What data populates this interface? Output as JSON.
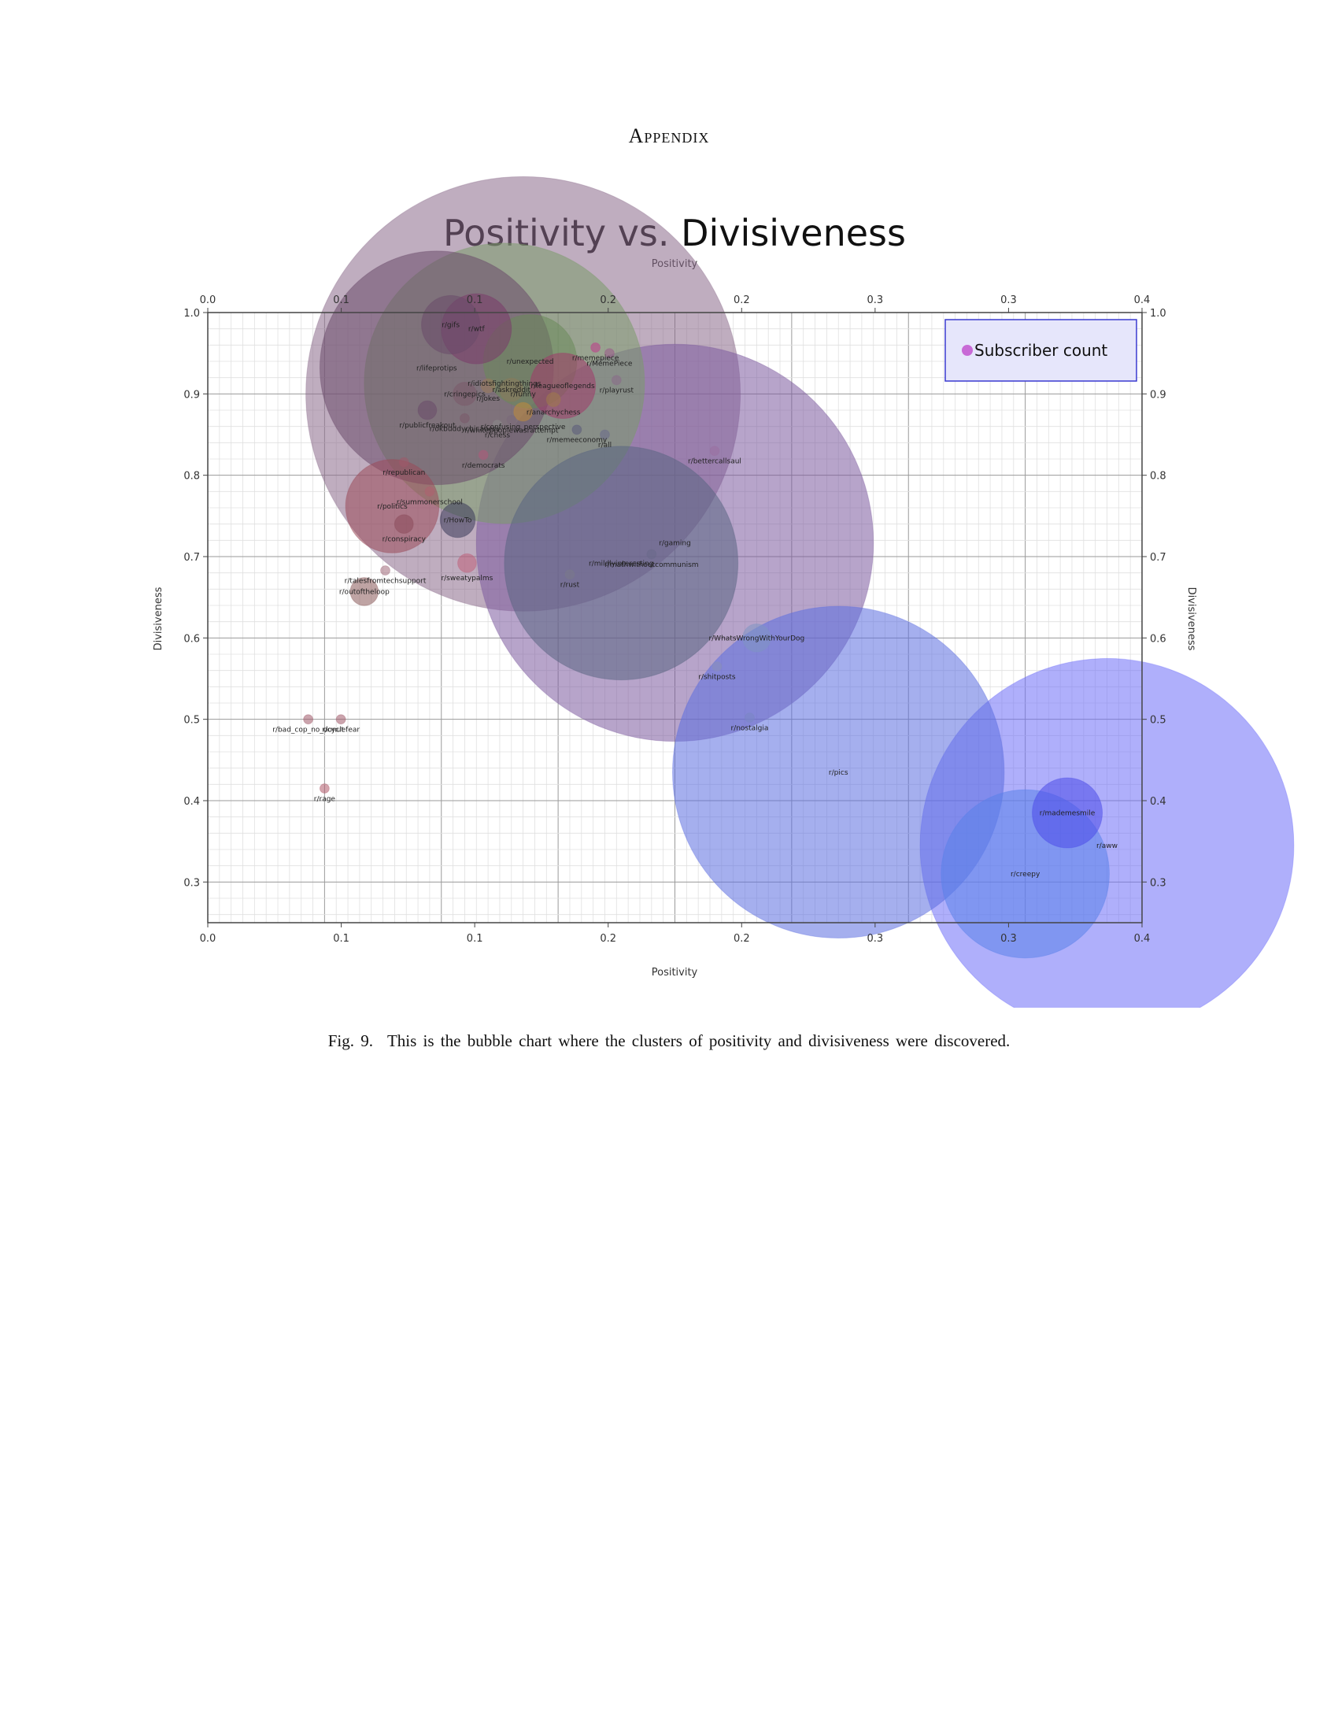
{
  "page": {
    "heading": "Appendix"
  },
  "caption": {
    "label": "Fig. 9.",
    "text": "This is the bubble chart where the clusters of positivity and divisiveness were discovered."
  },
  "chart_data": {
    "type": "scatter",
    "title": "Positivity vs. Divisiveness",
    "xlabel": "Positivity",
    "ylabel": "Divisiveness",
    "xlim": [
      0.0,
      0.4
    ],
    "ylim": [
      0.25,
      1.0
    ],
    "x_tick_labels": [
      "0.0",
      "0.1",
      "0.1",
      "0.2",
      "0.2",
      "0.3",
      "0.3",
      "0.4"
    ],
    "y_ticks": [
      0.3,
      0.4,
      0.5,
      0.6,
      0.7,
      0.8,
      0.9,
      1.0
    ],
    "y_tick_labels": [
      "0.3",
      "0.4",
      "0.5",
      "0.6",
      "0.7",
      "0.8",
      "0.9",
      "1.0"
    ],
    "grid": true,
    "legend": {
      "label": "Subscriber count",
      "placement": "top-right",
      "color": "#c86ad6"
    },
    "points": [
      {
        "label": "r/pics",
        "x": 0.27,
        "y": 0.435,
        "size": 0.142,
        "color": "#5b6ee0"
      },
      {
        "label": "r/aww",
        "x": 0.385,
        "y": 0.345,
        "size": 0.16,
        "color": "#6e6ef8"
      },
      {
        "label": "r/creepy",
        "x": 0.35,
        "y": 0.31,
        "size": 0.072,
        "color": "#5a82ea"
      },
      {
        "label": "r/mademesmile",
        "x": 0.368,
        "y": 0.385,
        "size": 0.03,
        "color": "#4a4ae8"
      },
      {
        "label": "r/nostalgia",
        "x": 0.232,
        "y": 0.502,
        "size": 0.004,
        "color": "#7a86c4"
      },
      {
        "label": "r/WhatsWrongWithYourDog",
        "x": 0.235,
        "y": 0.6,
        "size": 0.012,
        "color": "#7f96c2"
      },
      {
        "label": "r/shitposts",
        "x": 0.218,
        "y": 0.565,
        "size": 0.004,
        "color": "#8a90b8"
      },
      {
        "label": "r/bettercallsaul",
        "x": 0.217,
        "y": 0.83,
        "size": 0.004,
        "color": "#9a70a0"
      },
      {
        "label": "r/gaming",
        "x": 0.2,
        "y": 0.717,
        "size": 0.17,
        "color": "#7b5a9e"
      },
      {
        "label": "r/mildlyinteresting",
        "x": 0.177,
        "y": 0.692,
        "size": 0.1,
        "color": "#5a6482"
      },
      {
        "label": "r/mathwithoutcommunism",
        "x": 0.19,
        "y": 0.703,
        "size": 0.004,
        "color": "#6a6a8a"
      },
      {
        "label": "r/rust",
        "x": 0.155,
        "y": 0.678,
        "size": 0.004,
        "color": "#7a7a8a"
      },
      {
        "label": "r/sweatypalms",
        "x": 0.111,
        "y": 0.692,
        "size": 0.008,
        "color": "#c0607a"
      },
      {
        "label": "r/HowTo",
        "x": 0.107,
        "y": 0.745,
        "size": 0.015,
        "color": "#3a3a5a"
      },
      {
        "label": "r/summonerschool",
        "x": 0.095,
        "y": 0.78,
        "size": 0.004,
        "color": "#b06070"
      },
      {
        "label": "r/politics",
        "x": 0.079,
        "y": 0.762,
        "size": 0.04,
        "color": "#9a4a5a"
      },
      {
        "label": "r/conspiracy",
        "x": 0.084,
        "y": 0.74,
        "size": 0.008,
        "color": "#8a4a5a"
      },
      {
        "label": "r/republican",
        "x": 0.084,
        "y": 0.816,
        "size": 0.004,
        "color": "#a05a6a"
      },
      {
        "label": "r/talesfromtechsupport",
        "x": 0.076,
        "y": 0.683,
        "size": 0.004,
        "color": "#a06a7a"
      },
      {
        "label": "r/outoftheloop",
        "x": 0.067,
        "y": 0.657,
        "size": 0.012,
        "color": "#8a5a5a"
      },
      {
        "label": "r/bad_cop_no_donut",
        "x": 0.043,
        "y": 0.5,
        "size": 0.004,
        "color": "#a05a6a"
      },
      {
        "label": "r/cyclefear",
        "x": 0.057,
        "y": 0.5,
        "size": 0.004,
        "color": "#a05a6a"
      },
      {
        "label": "r/rage",
        "x": 0.05,
        "y": 0.415,
        "size": 0.004,
        "color": "#b05a6a"
      },
      {
        "label": "r/lifeprotips",
        "x": 0.098,
        "y": 0.932,
        "size": 0.1,
        "color": "#6a4a6a"
      },
      {
        "label": "r/funny",
        "x": 0.135,
        "y": 0.9,
        "size": 0.186,
        "color": "#8a6a8a"
      },
      {
        "label": "r/wtf",
        "x": 0.115,
        "y": 0.98,
        "size": 0.03,
        "color": "#7a3a6a"
      },
      {
        "label": "r/gifs",
        "x": 0.104,
        "y": 0.985,
        "size": 0.025,
        "color": "#6a4a6a"
      },
      {
        "label": "r/idiotsfightingthings",
        "x": 0.127,
        "y": 0.913,
        "size": 0.12,
        "color": "#7a9a6a"
      },
      {
        "label": "r/unexpected",
        "x": 0.138,
        "y": 0.94,
        "size": 0.04,
        "color": "#6a8a5a"
      },
      {
        "label": "r/askreddit",
        "x": 0.13,
        "y": 0.905,
        "size": 0.01,
        "color": "#8a7a5a"
      },
      {
        "label": "r/jokes",
        "x": 0.12,
        "y": 0.91,
        "size": 0.006,
        "color": "#9a7a5a"
      },
      {
        "label": "r/leagueoflegends",
        "x": 0.152,
        "y": 0.91,
        "size": 0.028,
        "color": "#a03a6a"
      },
      {
        "label": "r/anarchychess",
        "x": 0.148,
        "y": 0.893,
        "size": 0.006,
        "color": "#a07a4a"
      },
      {
        "label": "r/cringepics",
        "x": 0.11,
        "y": 0.9,
        "size": 0.01,
        "color": "#7a5a6a"
      },
      {
        "label": "r/memepiece",
        "x": 0.166,
        "y": 0.957,
        "size": 0.004,
        "color": "#c03a8a"
      },
      {
        "label": "r/MemePiece",
        "x": 0.172,
        "y": 0.95,
        "size": 0.004,
        "color": "#9a5a8a"
      },
      {
        "label": "r/playrust",
        "x": 0.175,
        "y": 0.917,
        "size": 0.004,
        "color": "#8a6a8a"
      },
      {
        "label": "r/publicfreakout",
        "x": 0.094,
        "y": 0.88,
        "size": 0.008,
        "color": "#6a4a6a"
      },
      {
        "label": "r/confusing_perspective",
        "x": 0.135,
        "y": 0.878,
        "size": 0.008,
        "color": "#c08a3a"
      },
      {
        "label": "r/okbuddychicanery",
        "x": 0.11,
        "y": 0.87,
        "size": 0.004,
        "color": "#7a5a6a"
      },
      {
        "label": "r/whitepeoplewasrattempt",
        "x": 0.13,
        "y": 0.868,
        "size": 0.004,
        "color": "#7a6a7a"
      },
      {
        "label": "r/chess",
        "x": 0.124,
        "y": 0.862,
        "size": 0.004,
        "color": "#8a8a8a"
      },
      {
        "label": "r/memeeconomy",
        "x": 0.158,
        "y": 0.856,
        "size": 0.004,
        "color": "#5a5a7a"
      },
      {
        "label": "r/all",
        "x": 0.17,
        "y": 0.85,
        "size": 0.004,
        "color": "#6a6a8a"
      },
      {
        "label": "r/democrats",
        "x": 0.118,
        "y": 0.825,
        "size": 0.004,
        "color": "#b05a7a"
      }
    ]
  }
}
